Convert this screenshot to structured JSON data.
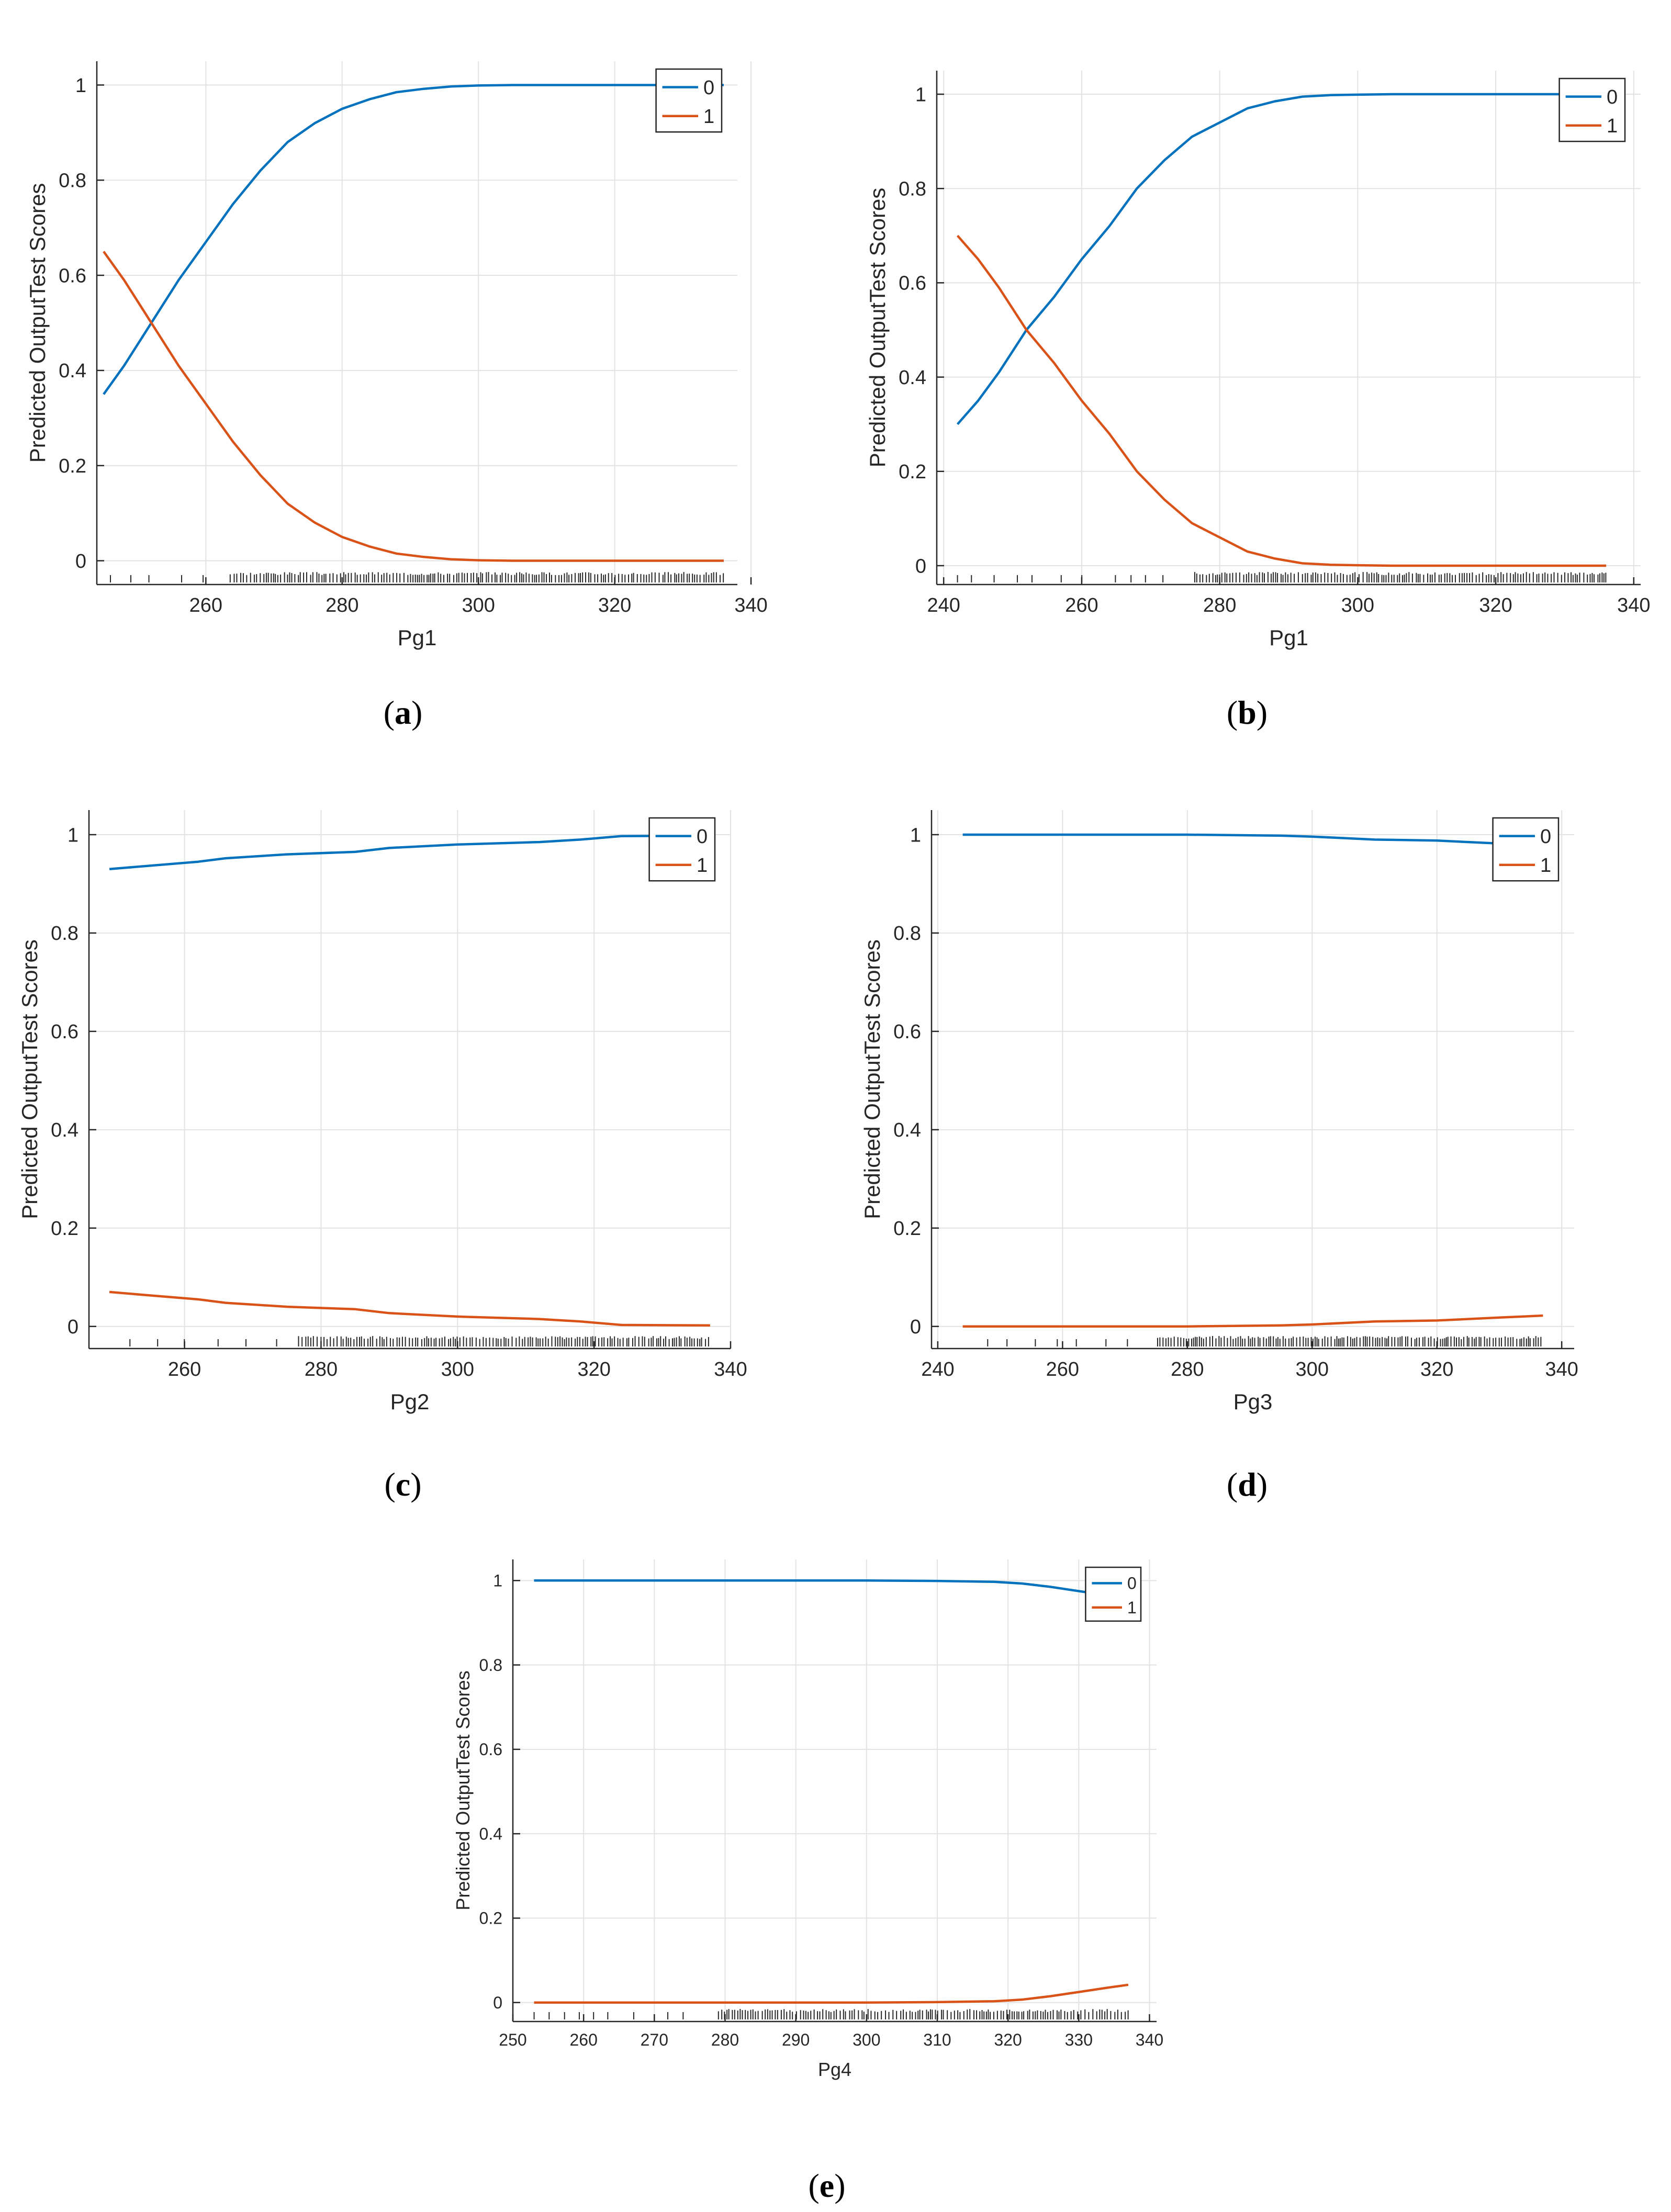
{
  "colors": {
    "series_0": "#0072BD",
    "series_1": "#D95319",
    "grid": "#e3e3e3",
    "axis": "#262626",
    "rug": "#262626"
  },
  "chart_data": [
    {
      "id": "a",
      "caption": "a",
      "type": "line",
      "title": "",
      "xlabel": "Pg1",
      "ylabel": "Predicted OutputTest Scores",
      "xlim": [
        244,
        338
      ],
      "ylim": [
        -0.05,
        1.05
      ],
      "xticks": [
        260,
        280,
        300,
        320,
        340
      ],
      "yticks": [
        0,
        0.2,
        0.4,
        0.6,
        0.8,
        1
      ],
      "ytick_labels": [
        "0",
        "0.2",
        "0.4",
        "0.6",
        "0.8",
        "1"
      ],
      "grid": true,
      "legend_position": "top-right",
      "series": [
        {
          "name": "0",
          "x": [
            245,
            248,
            252,
            256,
            260,
            264,
            268,
            272,
            276,
            280,
            284,
            288,
            292,
            296,
            300,
            305,
            310,
            320,
            330,
            336
          ],
          "values": [
            0.35,
            0.41,
            0.5,
            0.59,
            0.67,
            0.75,
            0.82,
            0.88,
            0.92,
            0.95,
            0.97,
            0.985,
            0.992,
            0.997,
            0.999,
            1.0,
            1.0,
            1.0,
            1.0,
            1.0
          ]
        },
        {
          "name": "1",
          "x": [
            245,
            248,
            252,
            256,
            260,
            264,
            268,
            272,
            276,
            280,
            284,
            288,
            292,
            296,
            300,
            305,
            310,
            320,
            330,
            336
          ],
          "values": [
            0.65,
            0.59,
            0.5,
            0.41,
            0.33,
            0.25,
            0.18,
            0.12,
            0.08,
            0.05,
            0.03,
            0.015,
            0.008,
            0.003,
            0.001,
            0.0,
            0.0,
            0.0,
            0.0,
            0.0
          ]
        }
      ],
      "rug": {
        "start": 246,
        "dense_from": 262,
        "end": 336
      }
    },
    {
      "id": "b",
      "caption": "b",
      "type": "line",
      "title": "",
      "xlabel": "Pg1",
      "ylabel": "Predicted OutputTest Scores",
      "xlim": [
        239,
        341
      ],
      "ylim": [
        -0.04,
        1.05
      ],
      "xticks": [
        240,
        260,
        280,
        300,
        320,
        340
      ],
      "yticks": [
        0,
        0.2,
        0.4,
        0.6,
        0.8,
        1
      ],
      "ytick_labels": [
        "0",
        "0.2",
        "0.4",
        "0.6",
        "0.8",
        "1"
      ],
      "grid": true,
      "legend_position": "top-right",
      "series": [
        {
          "name": "0",
          "x": [
            242,
            245,
            248,
            252,
            256,
            260,
            264,
            268,
            272,
            276,
            280,
            284,
            288,
            292,
            296,
            300,
            305,
            310,
            320,
            330,
            336
          ],
          "values": [
            0.3,
            0.35,
            0.41,
            0.5,
            0.57,
            0.65,
            0.72,
            0.8,
            0.86,
            0.91,
            0.94,
            0.97,
            0.985,
            0.995,
            0.998,
            0.999,
            1.0,
            1.0,
            1.0,
            1.0,
            1.0
          ]
        },
        {
          "name": "1",
          "x": [
            242,
            245,
            248,
            252,
            256,
            260,
            264,
            268,
            272,
            276,
            280,
            284,
            288,
            292,
            296,
            300,
            305,
            310,
            320,
            330,
            336
          ],
          "values": [
            0.7,
            0.65,
            0.59,
            0.5,
            0.43,
            0.35,
            0.28,
            0.2,
            0.14,
            0.09,
            0.06,
            0.03,
            0.015,
            0.005,
            0.002,
            0.001,
            0.0,
            0.0,
            0.0,
            0.0,
            0.0
          ]
        }
      ],
      "rug": {
        "start": 242,
        "dense_from": 274,
        "end": 336
      }
    },
    {
      "id": "c",
      "caption": "c",
      "type": "line",
      "title": "",
      "xlabel": "Pg2",
      "ylabel": "Predicted OutputTest Scores",
      "xlim": [
        246,
        340
      ],
      "ylim": [
        -0.045,
        1.05
      ],
      "xticks": [
        260,
        280,
        300,
        320,
        340
      ],
      "yticks": [
        0,
        0.2,
        0.4,
        0.6,
        0.8,
        1
      ],
      "ytick_labels": [
        "0",
        "0.2",
        "0.4",
        "0.6",
        "0.8",
        "1"
      ],
      "grid": true,
      "legend_position": "top-right",
      "series": [
        {
          "name": "0",
          "x": [
            249,
            255,
            262,
            266,
            275,
            285,
            290,
            300,
            312,
            318,
            324,
            337
          ],
          "values": [
            0.93,
            0.937,
            0.945,
            0.952,
            0.96,
            0.965,
            0.973,
            0.98,
            0.985,
            0.99,
            0.997,
            0.998
          ]
        },
        {
          "name": "1",
          "x": [
            249,
            255,
            262,
            266,
            275,
            285,
            290,
            300,
            312,
            318,
            324,
            337
          ],
          "values": [
            0.07,
            0.063,
            0.055,
            0.048,
            0.04,
            0.035,
            0.027,
            0.02,
            0.015,
            0.01,
            0.003,
            0.002
          ]
        }
      ],
      "rug": {
        "start": 252,
        "dense_from": 276,
        "end": 337
      }
    },
    {
      "id": "d",
      "caption": "d",
      "type": "line",
      "title": "",
      "xlabel": "Pg3",
      "ylabel": "Predicted OutputTest Scores",
      "xlim": [
        239,
        342
      ],
      "ylim": [
        -0.045,
        1.05
      ],
      "xticks": [
        240,
        260,
        280,
        300,
        320,
        340
      ],
      "yticks": [
        0,
        0.2,
        0.4,
        0.6,
        0.8,
        1
      ],
      "ytick_labels": [
        "0",
        "0.2",
        "0.4",
        "0.6",
        "0.8",
        "1"
      ],
      "grid": true,
      "legend_position": "top-right",
      "series": [
        {
          "name": "0",
          "x": [
            244,
            260,
            280,
            295,
            300,
            310,
            320,
            330,
            337
          ],
          "values": [
            1.0,
            1.0,
            1.0,
            0.998,
            0.996,
            0.99,
            0.988,
            0.982,
            0.978
          ]
        },
        {
          "name": "1",
          "x": [
            244,
            260,
            280,
            295,
            300,
            310,
            320,
            330,
            337
          ],
          "values": [
            0.0,
            0.0,
            0.0,
            0.002,
            0.004,
            0.01,
            0.012,
            0.018,
            0.022
          ]
        }
      ],
      "rug": {
        "start": 248,
        "dense_from": 273,
        "end": 337
      }
    },
    {
      "id": "e",
      "caption": "e",
      "type": "line",
      "title": "",
      "xlabel": "Pg4",
      "ylabel": "Predicted OutputTest Scores",
      "xlim": [
        250,
        341
      ],
      "ylim": [
        -0.045,
        1.05
      ],
      "xticks": [
        250,
        260,
        270,
        280,
        290,
        300,
        310,
        320,
        330,
        340
      ],
      "yticks": [
        0,
        0.2,
        0.4,
        0.6,
        0.8,
        1
      ],
      "ytick_labels": [
        "0",
        "0.2",
        "0.4",
        "0.6",
        "0.8",
        "1"
      ],
      "grid": true,
      "legend_position": "top-right",
      "series": [
        {
          "name": "0",
          "x": [
            253,
            270,
            290,
            300,
            310,
            318,
            322,
            326,
            330,
            334,
            337
          ],
          "values": [
            1.0,
            1.0,
            1.0,
            1.0,
            0.999,
            0.997,
            0.993,
            0.985,
            0.975,
            0.965,
            0.958
          ]
        },
        {
          "name": "1",
          "x": [
            253,
            270,
            290,
            300,
            310,
            318,
            322,
            326,
            330,
            334,
            337
          ],
          "values": [
            0.0,
            0.0,
            0.0,
            0.0,
            0.001,
            0.003,
            0.007,
            0.015,
            0.025,
            0.035,
            0.042
          ]
        }
      ],
      "rug": {
        "start": 253,
        "dense_from": 276,
        "end": 337
      }
    }
  ]
}
